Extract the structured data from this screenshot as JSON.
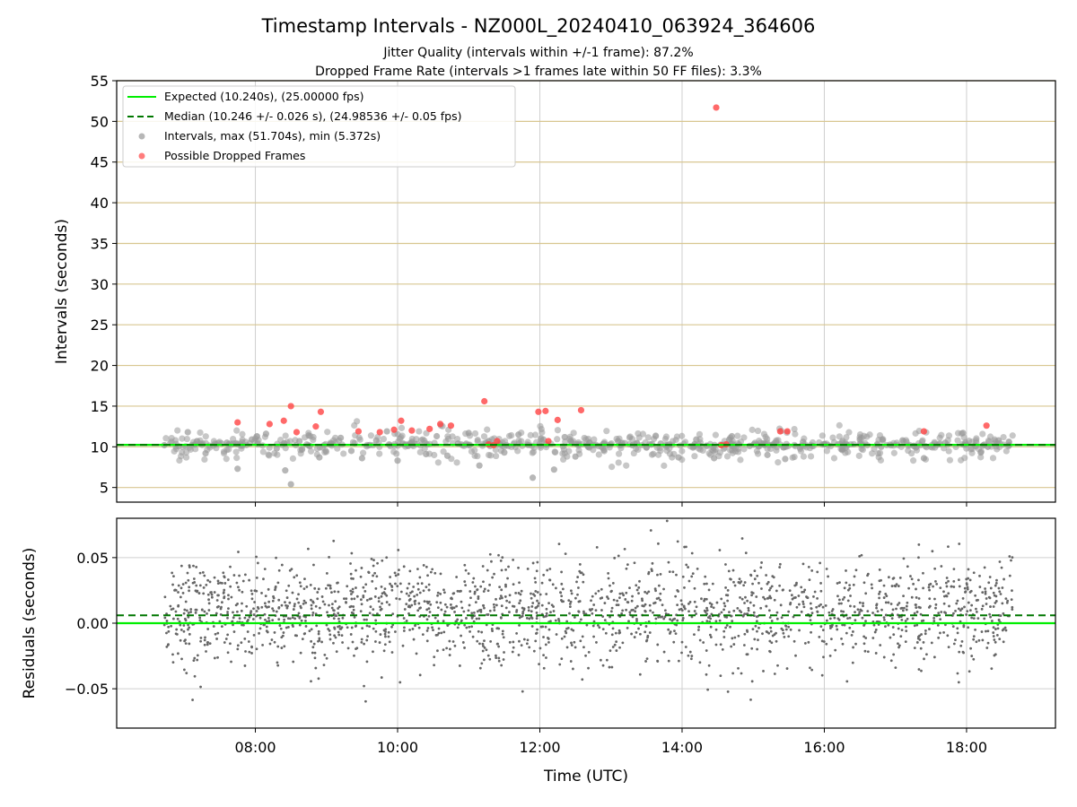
{
  "header": {
    "title": "Timestamp Intervals - NZ000L_20240410_063924_364606",
    "subtitle1": "Jitter Quality (intervals within +/-1 frame): 87.2%",
    "subtitle2": "Dropped Frame Rate (intervals >1 frames late within 50 FF files): 3.3%"
  },
  "chart_data": [
    {
      "type": "scatter",
      "panel": "top",
      "ylabel": "Intervals (seconds)",
      "ylim": [
        3.2,
        55
      ],
      "xlim_hours": [
        6.05,
        19.25
      ],
      "y_ticks": [
        "5",
        "10",
        "15",
        "20",
        "25",
        "30",
        "35",
        "40",
        "45",
        "50",
        "55"
      ],
      "x_tick_labels": [
        "08:00",
        "10:00",
        "12:00",
        "14:00",
        "16:00",
        "18:00"
      ],
      "grid": true,
      "legend_position": "top-left",
      "expected_line": {
        "value": 10.24,
        "color": "#00ee00",
        "label": "Expected (10.240s), (25.00000 fps)"
      },
      "median_line": {
        "value": 10.246,
        "color": "#007700",
        "label": "Median (10.246 +/- 0.026 s), (24.98536 +/- 0.05 fps)"
      },
      "intervals_label": "Intervals, max (51.704s), min (5.372s)",
      "dropped_label": "Possible Dropped Frames",
      "intervals_sample": {
        "x_hours": [
          6.72,
          7.05,
          7.3,
          7.6,
          7.75,
          7.95,
          8.15,
          8.3,
          8.42,
          8.5,
          8.62,
          8.75,
          8.9,
          9.05,
          9.2,
          9.35,
          9.5,
          9.7,
          9.85,
          10.0,
          10.2,
          10.4,
          10.55,
          10.7,
          10.85,
          11.0,
          11.15,
          11.3,
          11.5,
          11.7,
          11.9,
          12.05,
          12.2,
          12.35,
          12.5,
          12.7,
          12.9,
          13.1,
          13.3,
          13.5,
          13.7,
          13.95,
          14.2,
          14.45,
          14.7,
          14.95,
          15.2,
          15.45,
          15.7,
          16.0,
          16.25,
          16.5,
          16.8,
          17.1,
          17.4,
          17.7,
          17.95,
          18.2,
          18.45,
          18.6
        ],
        "y": [
          10.2,
          11.8,
          9.2,
          10.5,
          7.3,
          10.9,
          11.6,
          9.8,
          7.1,
          5.4,
          10.7,
          11.4,
          8.7,
          10.3,
          11.1,
          9.5,
          8.6,
          10.8,
          11.9,
          8.3,
          10.6,
          9.1,
          11.3,
          8.9,
          10.4,
          11.7,
          7.7,
          10.1,
          9.3,
          11.5,
          6.2,
          10.9,
          7.2,
          11.2,
          8.8,
          10.5,
          9.6,
          10.7,
          10.2,
          9.9,
          10.4,
          8.7,
          10.9,
          8.6,
          11.3,
          10.1,
          9.0,
          8.5,
          10.6,
          10.3,
          9.7,
          10.9,
          10.0,
          10.8,
          8.6,
          10.5,
          11.7,
          9.3,
          10.8,
          10.2
        ],
        "color": "#999999"
      },
      "dropped_sample": {
        "x_hours": [
          7.75,
          8.2,
          8.4,
          8.5,
          8.58,
          8.85,
          8.92,
          9.45,
          9.75,
          9.95,
          10.05,
          10.2,
          10.45,
          10.6,
          10.75,
          11.22,
          11.28,
          11.35,
          11.4,
          11.98,
          12.08,
          12.12,
          12.25,
          12.58,
          14.48,
          14.55,
          14.62,
          15.38,
          15.48,
          17.4,
          18.28
        ],
        "y": [
          13.0,
          12.8,
          13.2,
          15.0,
          11.8,
          12.5,
          14.3,
          11.9,
          11.8,
          12.1,
          13.2,
          12.0,
          12.2,
          12.8,
          12.6,
          15.6,
          10.3,
          10.2,
          10.7,
          14.3,
          14.4,
          10.7,
          13.3,
          14.5,
          51.7,
          10.2,
          10.3,
          11.9,
          11.9,
          11.9,
          12.6
        ],
        "color": "#ff4444"
      }
    },
    {
      "type": "scatter",
      "panel": "bottom",
      "xlabel": "Time (UTC)",
      "ylabel": "Residuals (seconds)",
      "ylim": [
        -0.08,
        0.08
      ],
      "y_ticks": [
        "−0.05",
        "0.00",
        "0.05"
      ],
      "x_tick_labels": [
        "08:00",
        "10:00",
        "12:00",
        "14:00",
        "16:00",
        "18:00"
      ],
      "grid": true,
      "expected_line": {
        "value": 0.0,
        "color": "#00ee00"
      },
      "median_line": {
        "value": 0.006,
        "color": "#007700"
      },
      "points_color": "#666666",
      "approx_points": 2000,
      "residual_center": 0.008,
      "residual_spread": 0.02
    }
  ]
}
